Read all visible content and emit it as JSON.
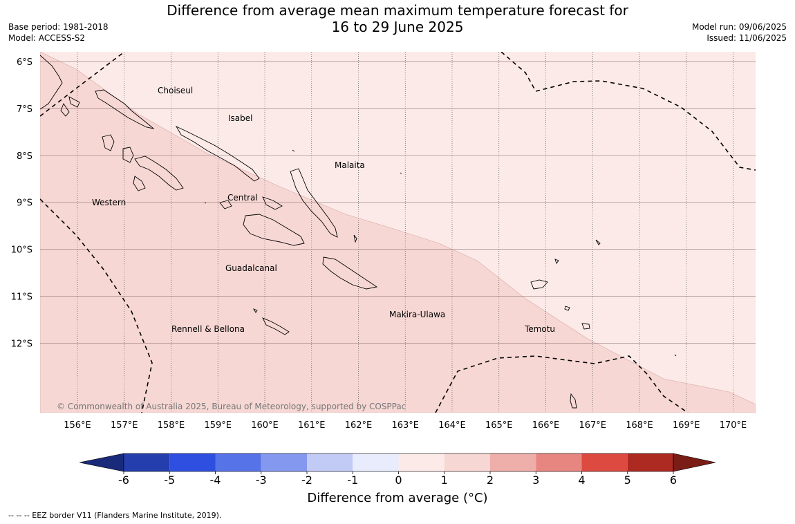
{
  "header": {
    "title_line1": "Difference from average mean maximum temperature forecast for",
    "title_line2": "16 to 29 June 2025",
    "base_period": "Base period: 1981-2018",
    "model": "Model: ACCESS-S2",
    "model_run": "Model run: 09/06/2025",
    "issued": "Issued: 11/06/2025"
  },
  "map": {
    "lat_labels": [
      "6°S",
      "7°S",
      "8°S",
      "9°S",
      "10°S",
      "11°S",
      "12°S"
    ],
    "lon_labels": [
      "156°E",
      "157°E",
      "158°E",
      "159°E",
      "160°E",
      "161°E",
      "162°E",
      "163°E",
      "164°E",
      "165°E",
      "166°E",
      "167°E",
      "168°E",
      "169°E",
      "170°E"
    ],
    "regions": [
      "Choiseul",
      "Isabel",
      "Malaita",
      "Western",
      "Central",
      "Guadalcanal",
      "Makira-Ulawa",
      "Rennell & Bellona",
      "Temotu"
    ],
    "copyright": "© Commonwealth of Australia 2025, Bureau of Meteorology, supported by COSPPac",
    "fill_zones": [
      {
        "range": "0 to 1",
        "color": "#fbeae8"
      },
      {
        "range": "1 to 2",
        "color": "#f6d7d4"
      }
    ],
    "border_style": "dashed"
  },
  "colorbar": {
    "ticks": [
      "-6",
      "-5",
      "-4",
      "-3",
      "-2",
      "-1",
      "0",
      "1",
      "2",
      "3",
      "4",
      "5",
      "6"
    ],
    "colors": [
      "#243fad",
      "#2f4fe0",
      "#5673e8",
      "#8498ef",
      "#c2cbf5",
      "#e8ecfc",
      "#fbeae8",
      "#f6d7d4",
      "#eeaeaa",
      "#e78680",
      "#dd4a40",
      "#ad2a22"
    ],
    "low_extend_color": "#1a2a7a",
    "high_extend_color": "#7a1d17",
    "label": "Difference from average ($^\\circ$C)",
    "label_display": "Difference from average (°C)"
  },
  "footnote": "--  --  -- EEZ border V11 (Flanders Marine Institute, 2019)."
}
